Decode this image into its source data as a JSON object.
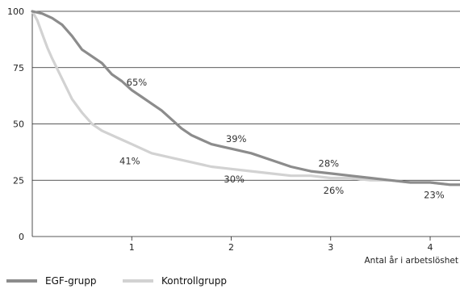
{
  "chart_data": {
    "type": "line",
    "xlabel": "Antal år i arbetslöshet",
    "ylabel": "",
    "xlim": [
      0,
      4.3
    ],
    "ylim": [
      0,
      100
    ],
    "xticks": [
      "1",
      "2",
      "3",
      "4"
    ],
    "yticks": [
      "0",
      "25",
      "50",
      "75",
      "100"
    ],
    "grid": "horizontal",
    "legend_position": "bottom-left",
    "series": [
      {
        "name": "EGF-grupp",
        "color": "#8c8c8c",
        "x": [
          0,
          0.1,
          0.2,
          0.3,
          0.4,
          0.5,
          0.6,
          0.7,
          0.8,
          0.9,
          1.0,
          1.1,
          1.2,
          1.3,
          1.4,
          1.5,
          1.6,
          1.7,
          1.8,
          1.9,
          2.0,
          2.2,
          2.4,
          2.6,
          2.8,
          3.0,
          3.2,
          3.4,
          3.6,
          3.8,
          4.0,
          4.2,
          4.3
        ],
        "y": [
          100,
          99,
          97,
          94,
          89,
          83,
          80,
          77,
          72,
          69,
          65,
          62,
          59,
          56,
          52,
          48,
          45,
          43,
          41,
          40,
          39,
          37,
          34,
          31,
          29,
          28,
          27,
          26,
          25,
          24,
          24,
          23,
          23
        ]
      },
      {
        "name": "Kontrollgrupp",
        "color": "#d2d2d2",
        "x": [
          0,
          0.05,
          0.1,
          0.15,
          0.2,
          0.3,
          0.4,
          0.5,
          0.6,
          0.7,
          0.8,
          0.9,
          1.0,
          1.1,
          1.2,
          1.4,
          1.6,
          1.8,
          2.0,
          2.2,
          2.4,
          2.6,
          2.8,
          3.0,
          3.2,
          3.4,
          3.6,
          3.8,
          4.0,
          4.2,
          4.3
        ],
        "y": [
          100,
          96,
          90,
          84,
          79,
          70,
          61,
          55,
          50,
          47,
          45,
          43,
          41,
          39,
          37,
          35,
          33,
          31,
          30,
          29,
          28,
          27,
          27,
          26,
          26,
          25,
          25,
          24,
          24,
          23,
          23
        ]
      }
    ],
    "annotations": [
      {
        "text": "65%",
        "x": 1.05,
        "y": 67
      },
      {
        "text": "39%",
        "x": 2.05,
        "y": 42
      },
      {
        "text": "28%",
        "x": 2.98,
        "y": 31
      },
      {
        "text": "41%",
        "x": 0.98,
        "y": 32
      },
      {
        "text": "30%",
        "x": 2.03,
        "y": 24
      },
      {
        "text": "26%",
        "x": 3.03,
        "y": 19
      },
      {
        "text": "23%",
        "x": 4.04,
        "y": 17
      }
    ]
  }
}
